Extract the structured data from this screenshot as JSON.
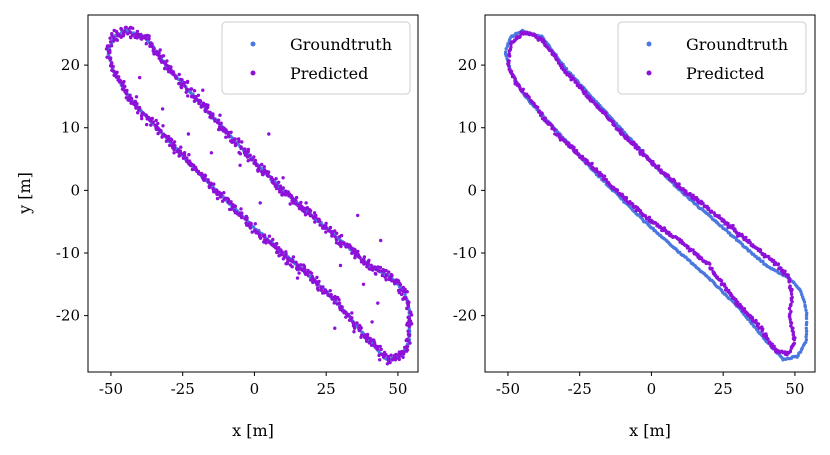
{
  "chart_data": [
    {
      "type": "scatter",
      "panel": "left",
      "title": "",
      "xlabel": "x [m]",
      "ylabel": "y [m]",
      "xlim": [
        -58,
        57
      ],
      "ylim": [
        -29,
        28
      ],
      "xticks": [
        -50,
        -25,
        0,
        25,
        50
      ],
      "xtick_labels": [
        "-50",
        "-25",
        "0",
        "25",
        "50"
      ],
      "yticks": [
        -20,
        -10,
        0,
        10,
        20
      ],
      "ytick_labels": [
        "-20",
        "-10",
        "0",
        "10",
        "20"
      ],
      "legend": {
        "position": "top-right",
        "entries": [
          "Groundtruth",
          "Predicted"
        ]
      },
      "series": [
        {
          "name": "Groundtruth",
          "color": "#4a78e0",
          "path": [
            [
              -42,
              25
            ],
            [
              -38,
              24.5
            ],
            [
              -30,
              19.5
            ],
            [
              -20,
              14.5
            ],
            [
              -10,
              9.5
            ],
            [
              0,
              4.5
            ],
            [
              10,
              0
            ],
            [
              20,
              -4
            ],
            [
              30,
              -8
            ],
            [
              40,
              -12
            ],
            [
              48,
              -14
            ],
            [
              52,
              -16
            ],
            [
              54,
              -19
            ],
            [
              54,
              -24
            ],
            [
              51,
              -26.5
            ],
            [
              46,
              -27
            ],
            [
              40,
              -24
            ],
            [
              30,
              -18.5
            ],
            [
              20,
              -14
            ],
            [
              10,
              -10
            ],
            [
              0,
              -6
            ],
            [
              -10,
              -1.5
            ],
            [
              -20,
              3
            ],
            [
              -32,
              9
            ],
            [
              -44,
              15
            ],
            [
              -49,
              19
            ],
            [
              -51,
              22
            ],
            [
              -49,
              24.5
            ],
            [
              -45,
              25.5
            ],
            [
              -42,
              25
            ]
          ]
        },
        {
          "name": "Predicted",
          "color": "#8f10d8",
          "noise": 1.3,
          "outlier_points": [
            [
              -32,
              13
            ],
            [
              -23,
              9
            ],
            [
              -15,
              6
            ],
            [
              -12,
              12
            ],
            [
              -5,
              4
            ],
            [
              5,
              9
            ],
            [
              10,
              2
            ],
            [
              18,
              -2
            ],
            [
              25,
              -6
            ],
            [
              33,
              -9
            ],
            [
              38,
              -15
            ],
            [
              43,
              -18
            ],
            [
              -28,
              6
            ],
            [
              -8,
              -3
            ],
            [
              28,
              -22
            ],
            [
              47,
              -14
            ],
            [
              44,
              -8
            ],
            [
              36,
              -4
            ],
            [
              30,
              -12
            ],
            [
              15,
              -14
            ],
            [
              -40,
              18
            ],
            [
              -18,
              16
            ],
            [
              2,
              -2
            ],
            [
              41,
              -21
            ]
          ]
        }
      ]
    },
    {
      "type": "scatter",
      "panel": "right",
      "title": "",
      "xlabel": "x [m]",
      "ylabel": "",
      "xlim": [
        -58,
        57
      ],
      "ylim": [
        -29,
        28
      ],
      "xticks": [
        -50,
        -25,
        0,
        25,
        50
      ],
      "xtick_labels": [
        "-50",
        "-25",
        "0",
        "25",
        "50"
      ],
      "yticks": [
        -20,
        -10,
        0,
        10,
        20
      ],
      "ytick_labels": [
        "-20",
        "-10",
        "0",
        "10",
        "20"
      ],
      "legend": {
        "position": "top-right",
        "entries": [
          "Groundtruth",
          "Predicted"
        ]
      },
      "series": [
        {
          "name": "Groundtruth",
          "color": "#4a78e0",
          "path": [
            [
              -42,
              25
            ],
            [
              -38,
              24.5
            ],
            [
              -30,
              19.5
            ],
            [
              -20,
              14.5
            ],
            [
              -10,
              9.5
            ],
            [
              0,
              4.5
            ],
            [
              10,
              0
            ],
            [
              20,
              -4
            ],
            [
              30,
              -8
            ],
            [
              40,
              -12
            ],
            [
              48,
              -14
            ],
            [
              52,
              -16
            ],
            [
              54,
              -19
            ],
            [
              54,
              -24
            ],
            [
              51,
              -26.5
            ],
            [
              46,
              -27
            ],
            [
              40,
              -24
            ],
            [
              30,
              -18.5
            ],
            [
              20,
              -14
            ],
            [
              10,
              -10
            ],
            [
              0,
              -6
            ],
            [
              -10,
              -1.5
            ],
            [
              -20,
              3
            ],
            [
              -32,
              9
            ],
            [
              -44,
              15
            ],
            [
              -49,
              19
            ],
            [
              -51,
              22
            ],
            [
              -49,
              24.5
            ],
            [
              -45,
              25.5
            ],
            [
              -42,
              25
            ]
          ]
        },
        {
          "name": "Predicted",
          "color": "#8f10d8",
          "noise": 0.5,
          "path": [
            [
              -42,
              25
            ],
            [
              -38,
              24
            ],
            [
              -30,
              19
            ],
            [
              -20,
              14
            ],
            [
              -10,
              9
            ],
            [
              0,
              4.5
            ],
            [
              10,
              0.5
            ],
            [
              20,
              -3
            ],
            [
              28,
              -6
            ],
            [
              36,
              -9
            ],
            [
              44,
              -12
            ],
            [
              48,
              -14
            ],
            [
              49,
              -17
            ],
            [
              48,
              -20
            ],
            [
              50,
              -24
            ],
            [
              48,
              -26
            ],
            [
              43,
              -25.5
            ],
            [
              38,
              -22
            ],
            [
              30,
              -18
            ],
            [
              20,
              -12
            ],
            [
              10,
              -8
            ],
            [
              0,
              -5
            ],
            [
              -10,
              -1
            ],
            [
              -20,
              3.5
            ],
            [
              -33,
              9
            ],
            [
              -43,
              15
            ],
            [
              -47,
              17
            ],
            [
              -50,
              20
            ],
            [
              -49,
              23.5
            ],
            [
              -45,
              25
            ],
            [
              -42,
              25
            ]
          ]
        }
      ]
    }
  ]
}
